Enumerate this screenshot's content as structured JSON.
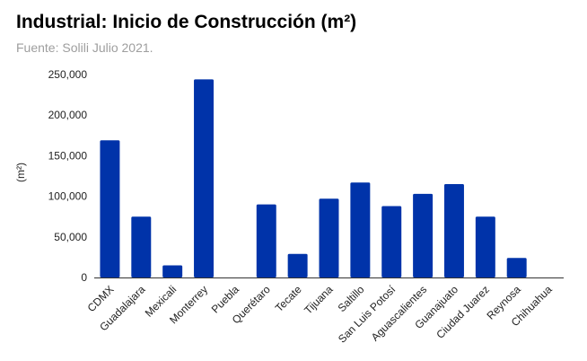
{
  "chart_data": {
    "type": "bar",
    "title": "Industrial: Inicio de Construcción (m²)",
    "subtitle": "Fuente: Solili Julio 2021.",
    "xlabel": "",
    "ylabel": "(m²)",
    "ylim": [
      0,
      250000
    ],
    "yticks": [
      "0",
      "50,000",
      "100,000",
      "150,000",
      "200,000",
      "250,000"
    ],
    "grid": false,
    "legend": "none",
    "bar_color": "#0033a9",
    "categories": [
      "CDMX",
      "Guadalajara",
      "Mexicali",
      "Monterrey",
      "Puebla",
      "Querétaro",
      "Tecate",
      "Tijuana",
      "Saltillo",
      "San Luis Potosí",
      "Aguascalientes",
      "Guanajuato",
      "Ciudad Juarez",
      "Reynosa",
      "Chihuahua"
    ],
    "values": [
      169000,
      75000,
      15000,
      244000,
      0,
      90000,
      29000,
      97000,
      117000,
      88000,
      103000,
      115000,
      75000,
      24000,
      0
    ]
  }
}
